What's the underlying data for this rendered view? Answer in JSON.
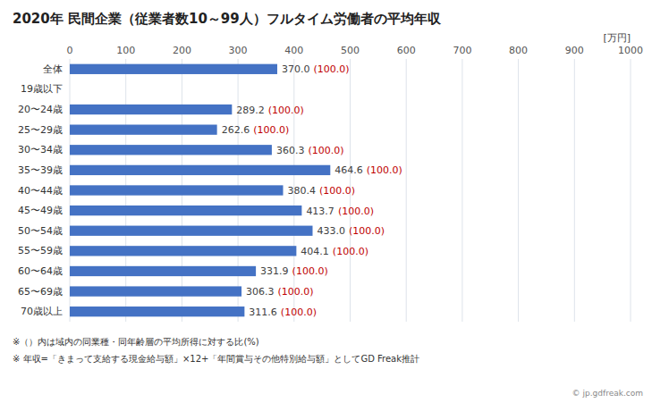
{
  "chart_data": {
    "type": "bar",
    "orientation": "horizontal",
    "title": "2020年 民間企業（従業者数10～99人）フルタイム労働者の平均年収",
    "xlabel": "[万円]",
    "categories": [
      "全体",
      "19歳以下",
      "20〜24歳",
      "25〜29歳",
      "30〜34歳",
      "35〜39歳",
      "40〜44歳",
      "45〜49歳",
      "50〜54歳",
      "55〜59歳",
      "60〜64歳",
      "65〜69歳",
      "70歳以上"
    ],
    "values": [
      370.0,
      0,
      289.2,
      262.6,
      360.3,
      464.6,
      380.4,
      413.7,
      433.0,
      404.1,
      331.9,
      306.3,
      311.6
    ],
    "value_labels": [
      "370.0",
      null,
      "289.2",
      "262.6",
      "360.3",
      "464.6",
      "380.4",
      "413.7",
      "433.0",
      "404.1",
      "331.9",
      "306.3",
      "311.6"
    ],
    "ratio_labels": [
      "(100.0)",
      null,
      "(100.0)",
      "(100.0)",
      "(100.0)",
      "(100.0)",
      "(100.0)",
      "(100.0)",
      "(100.0)",
      "(100.0)",
      "(100.0)",
      "(100.0)",
      "(100.0)"
    ],
    "color": "#4472C4",
    "xlim": [
      0,
      1000
    ],
    "xticks": [
      0,
      100,
      200,
      300,
      400,
      500,
      600,
      700,
      800,
      900,
      1000
    ],
    "grid": true,
    "data_labels": true,
    "annotations": [
      "※（）内は域内の同業種・同年齢層の平均所得に対する比(%)",
      "※ 年収=「きまって支給する現金給与額」×12+「年間賞与その他特別給与額」としてGD Freak推計",
      "© jp.gdfreak.com"
    ]
  }
}
